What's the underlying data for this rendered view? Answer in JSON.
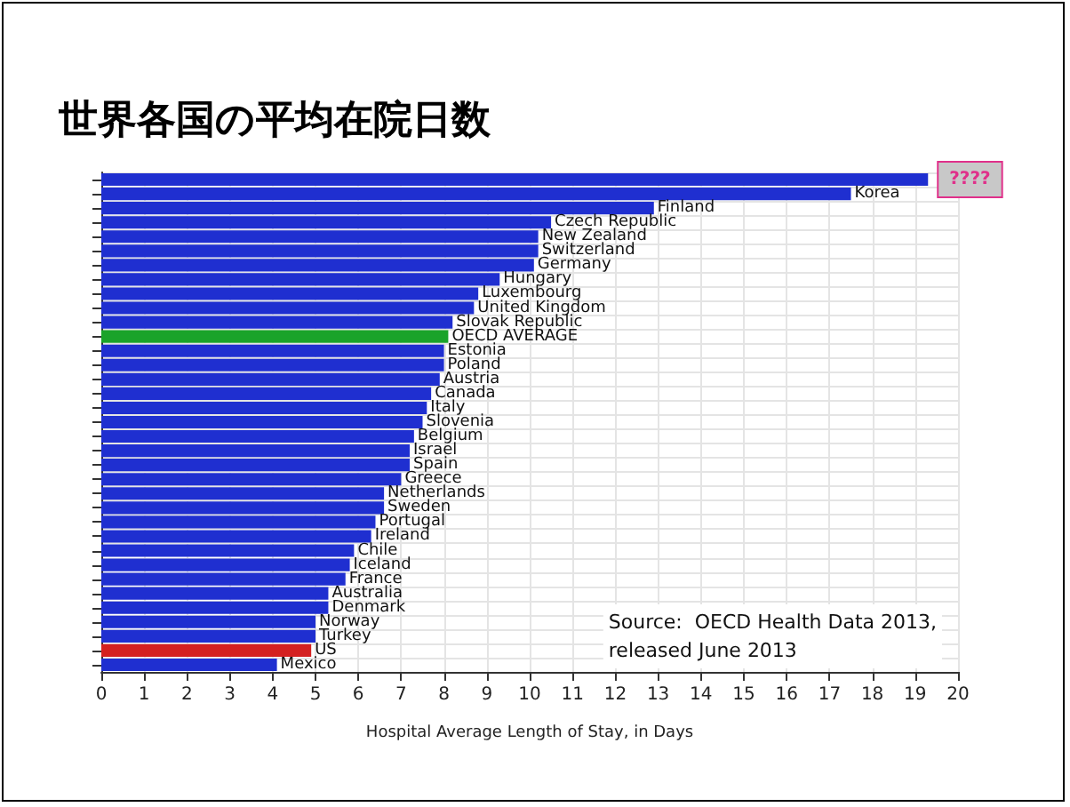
{
  "chart_data": {
    "type": "bar",
    "orientation": "horizontal",
    "title": "世界各国の平均在院日数",
    "xlabel": "Hospital Average Length of Stay, in Days",
    "categories": [
      "????",
      "Korea",
      "Finland",
      "Czech Republic",
      "New Zealand",
      "Switzerland",
      "Germany",
      "Hungary",
      "Luxembourg",
      "United Kingdom",
      "Slovak Republic",
      "OECD AVERAGE",
      "Estonia",
      "Poland",
      "Austria",
      "Canada",
      "Italy",
      "Slovenia",
      "Belgium",
      "Israel",
      "Spain",
      "Greece",
      "Netherlands",
      "Sweden",
      "Portugal",
      "Ireland",
      "Chile",
      "Iceland",
      "France",
      "Australia",
      "Denmark",
      "Norway",
      "Turkey",
      "US",
      "Mexico"
    ],
    "values": [
      19.3,
      17.5,
      12.9,
      10.5,
      10.2,
      10.2,
      10.1,
      9.3,
      8.8,
      8.7,
      8.2,
      8.1,
      8.0,
      8.0,
      7.9,
      7.7,
      7.6,
      7.5,
      7.3,
      7.2,
      7.2,
      7.0,
      6.6,
      6.6,
      6.4,
      6.3,
      5.9,
      5.8,
      5.7,
      5.3,
      5.3,
      5.0,
      5.0,
      4.9,
      4.1
    ],
    "colors": [
      "#1f2fd0",
      "#1f2fd0",
      "#1f2fd0",
      "#1f2fd0",
      "#1f2fd0",
      "#1f2fd0",
      "#1f2fd0",
      "#1f2fd0",
      "#1f2fd0",
      "#1f2fd0",
      "#1f2fd0",
      "#1aa32a",
      "#1f2fd0",
      "#1f2fd0",
      "#1f2fd0",
      "#1f2fd0",
      "#1f2fd0",
      "#1f2fd0",
      "#1f2fd0",
      "#1f2fd0",
      "#1f2fd0",
      "#1f2fd0",
      "#1f2fd0",
      "#1f2fd0",
      "#1f2fd0",
      "#1f2fd0",
      "#1f2fd0",
      "#1f2fd0",
      "#1f2fd0",
      "#1f2fd0",
      "#1f2fd0",
      "#1f2fd0",
      "#1f2fd0",
      "#d42020",
      "#1f2fd0"
    ],
    "xlim": [
      0,
      20
    ],
    "xticks": [
      0,
      1,
      2,
      3,
      4,
      5,
      6,
      7,
      8,
      9,
      10,
      11,
      12,
      13,
      14,
      15,
      16,
      17,
      18,
      19,
      20
    ],
    "tick_labels": "x",
    "grid": true,
    "annotations": [
      "Source:  OECD Health Data 2013,\nreleased June 2013"
    ]
  }
}
